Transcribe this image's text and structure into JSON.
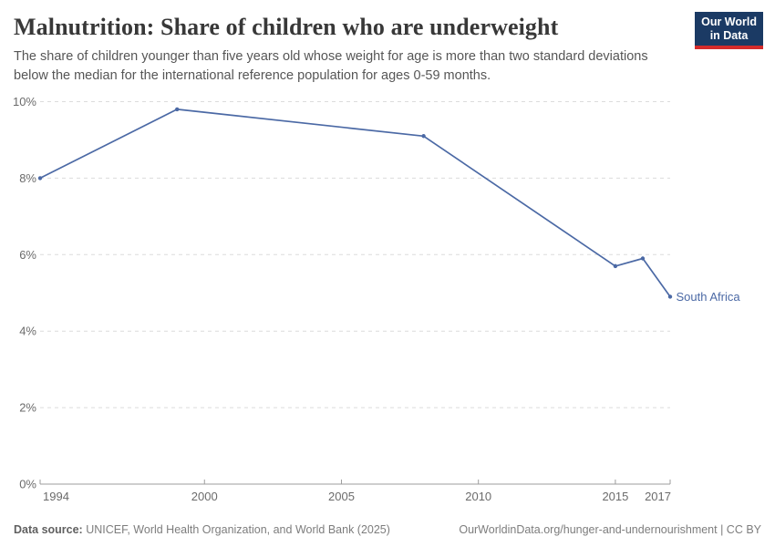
{
  "header": {
    "title": "Malnutrition: Share of children who are underweight",
    "subtitle": "The share of children younger than five years old whose weight for age is more than two standard deviations below the median for the international reference population for ages 0-59 months.",
    "logo_line1": "Our World",
    "logo_line2": "in Data"
  },
  "chart_data": {
    "type": "line",
    "title": "Malnutrition: Share of children who are underweight",
    "entity_label": "South Africa",
    "series": [
      {
        "name": "South Africa",
        "color": "#4b69a5",
        "points": [
          [
            1994,
            8.0
          ],
          [
            1999,
            9.8
          ],
          [
            2008,
            9.1
          ],
          [
            2015,
            5.7
          ],
          [
            2016,
            5.9
          ],
          [
            2017,
            4.9
          ]
        ]
      }
    ],
    "xlim": [
      1994,
      2017
    ],
    "ylim": [
      0,
      10
    ],
    "x_ticks": [
      1994,
      2000,
      2005,
      2010,
      2015,
      2017
    ],
    "y_ticks": [
      0,
      2,
      4,
      6,
      8,
      10
    ],
    "y_suffix": "%",
    "grid": "horizontal-dashed",
    "legend_position": "line-end-label"
  },
  "footer": {
    "datasource_label": "Data source:",
    "datasource_text": " UNICEF, World Health Organization, and World Bank (2025)",
    "link_text": "OurWorldinData.org/hunger-and-undernourishment | CC BY"
  },
  "colors": {
    "line": "#4b69a5",
    "title_text": "#383838",
    "subtitle_text": "#565656",
    "tick_text": "#6b6b6b",
    "axis": "#9c9c9c",
    "gridline": "#dcdcdc",
    "logo_bg": "#1b3a64",
    "logo_accent": "#d42b2b",
    "footer_text": "#7d7d7d"
  }
}
